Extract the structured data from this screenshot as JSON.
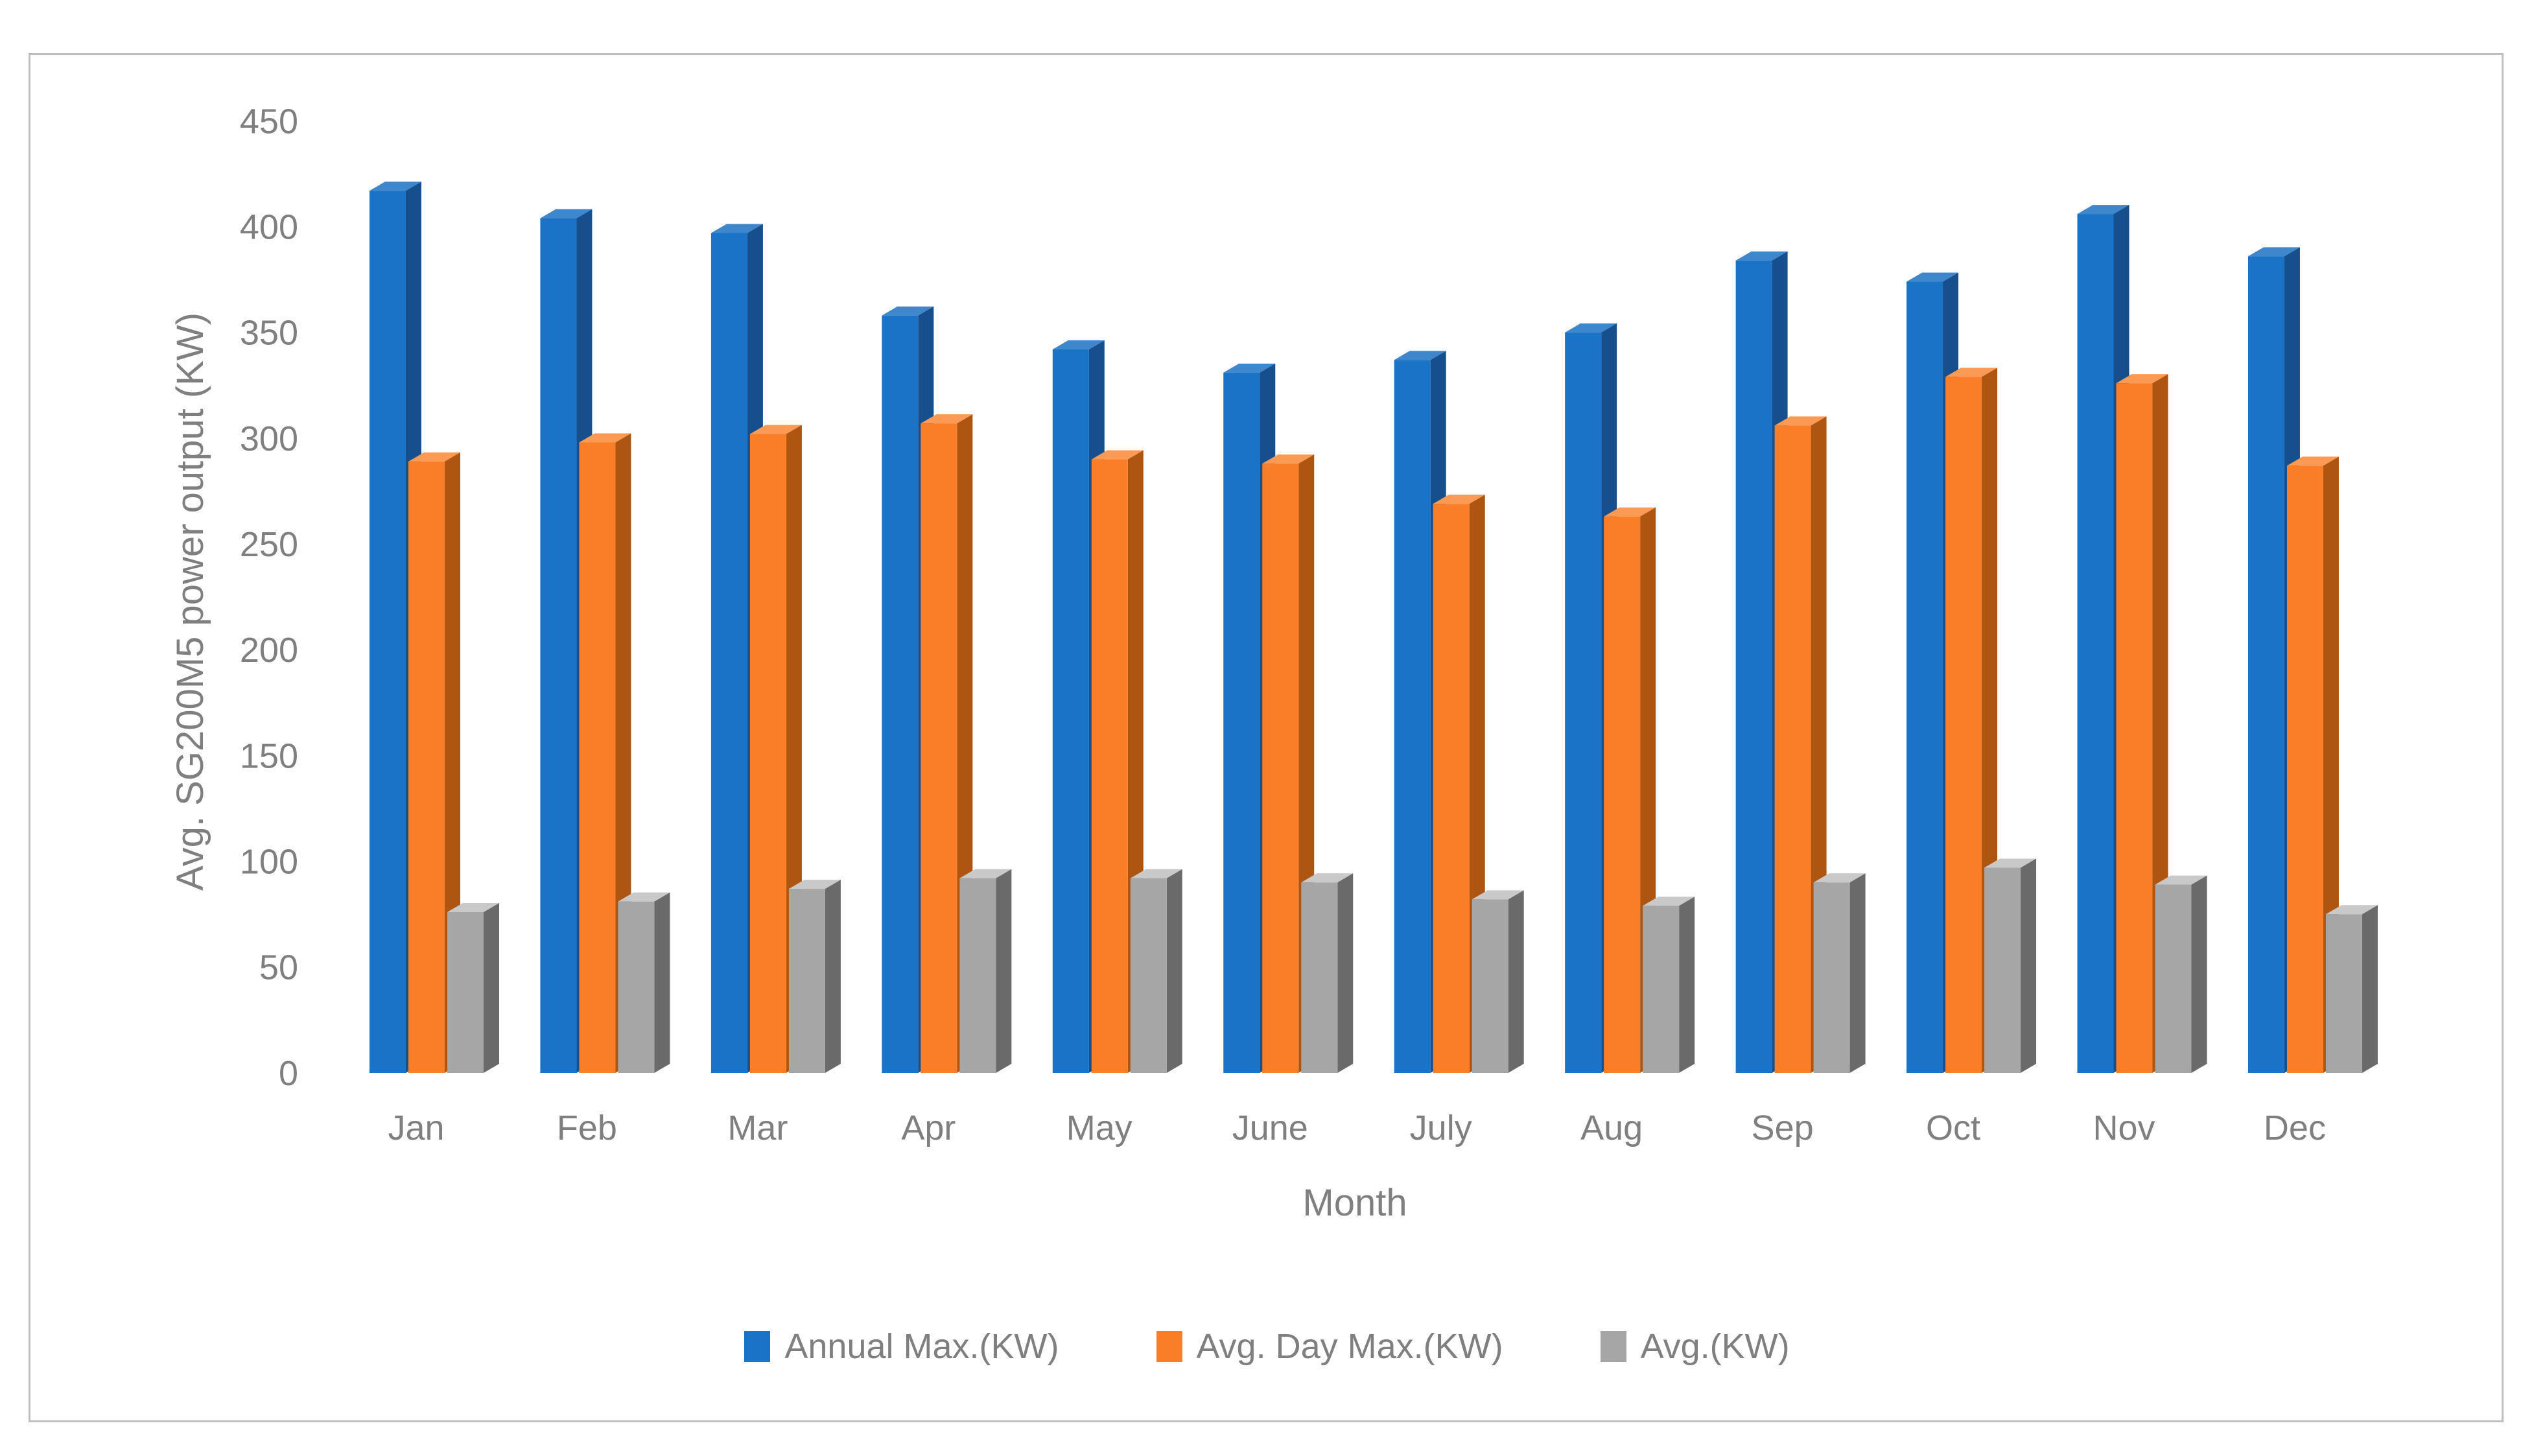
{
  "figure": {
    "background": "#ffffff",
    "border_color": "#bfbfbf",
    "text_color": "#7f7f7f"
  },
  "chart_data": {
    "type": "bar",
    "subtype": "3d-extruded-clustered-column",
    "title": "",
    "ylabel": "Avg. SG200M5 power output (KW)",
    "xlabel": "Month",
    "ylim": [
      0,
      450
    ],
    "ytick_step": 50,
    "yticks": [
      450,
      400,
      350,
      300,
      250,
      200,
      150,
      100,
      50,
      0
    ],
    "grid": false,
    "legend_position": "bottom",
    "categories": [
      "Jan",
      "Feb",
      "Mar",
      "Apr",
      "May",
      "June",
      "July",
      "Aug",
      "Sep",
      "Oct",
      "Nov",
      "Dec"
    ],
    "series": [
      {
        "name": "Annual Max.(KW)",
        "key": "annual-max",
        "color": "#1b73c8",
        "side_color": "#174e8c",
        "top_color": "#3e87cd",
        "values": [
          417,
          404,
          397,
          358,
          342,
          331,
          337,
          350,
          384,
          374,
          406,
          386
        ]
      },
      {
        "name": "Avg. Day Max.(KW)",
        "key": "avg-day-max",
        "color": "#f97e27",
        "side_color": "#ae5511",
        "top_color": "#fb9a55",
        "values": [
          289,
          298,
          302,
          307,
          290,
          288,
          269,
          263,
          306,
          329,
          326,
          287
        ]
      },
      {
        "name": "Avg.(KW)",
        "key": "avg",
        "color": "#a6a6a6",
        "side_color": "#6a6a6a",
        "top_color": "#c9c9c9",
        "values": [
          76,
          81,
          87,
          92,
          92,
          90,
          82,
          79,
          90,
          97,
          89,
          75
        ]
      }
    ]
  }
}
